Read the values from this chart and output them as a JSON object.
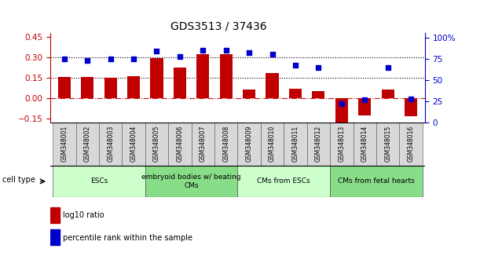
{
  "title": "GDS3513 / 37436",
  "samples": [
    "GSM348001",
    "GSM348002",
    "GSM348003",
    "GSM348004",
    "GSM348005",
    "GSM348006",
    "GSM348007",
    "GSM348008",
    "GSM348009",
    "GSM348010",
    "GSM348011",
    "GSM348012",
    "GSM348013",
    "GSM348014",
    "GSM348015",
    "GSM348016"
  ],
  "log10_ratio": [
    0.155,
    0.155,
    0.15,
    0.16,
    0.295,
    0.225,
    0.325,
    0.325,
    0.065,
    0.185,
    0.07,
    0.055,
    -0.2,
    -0.125,
    0.065,
    -0.13
  ],
  "percentile_rank": [
    75,
    73,
    75,
    75,
    84,
    78,
    85,
    85,
    82,
    80,
    67,
    65,
    22,
    27,
    65,
    28
  ],
  "bar_color": "#c00000",
  "dot_color": "#0000cc",
  "ylim_left": [
    -0.175,
    0.475
  ],
  "ylim_right": [
    0,
    105
  ],
  "yticks_left": [
    -0.15,
    0.0,
    0.15,
    0.3,
    0.45
  ],
  "yticks_right": [
    0,
    25,
    50,
    75,
    100
  ],
  "ytick_labels_right": [
    "0",
    "25",
    "50",
    "75",
    "100%"
  ],
  "hline_015": 0.15,
  "hline_030": 0.3,
  "cell_type_groups": [
    {
      "label": "ESCs",
      "start": 0,
      "end": 4,
      "color": "#ccffcc"
    },
    {
      "label": "embryoid bodies w/ beating\nCMs",
      "start": 4,
      "end": 8,
      "color": "#88dd88"
    },
    {
      "label": "CMs from ESCs",
      "start": 8,
      "end": 12,
      "color": "#ccffcc"
    },
    {
      "label": "CMs from fetal hearts",
      "start": 12,
      "end": 16,
      "color": "#88dd88"
    }
  ],
  "legend_bar_label": "log10 ratio",
  "legend_dot_label": "percentile rank within the sample",
  "title_fontsize": 10,
  "tick_fontsize": 7.5,
  "label_fontsize": 7,
  "cell_type_label": "cell type",
  "sample_box_color": "#d8d8d8",
  "bar_width": 0.55
}
